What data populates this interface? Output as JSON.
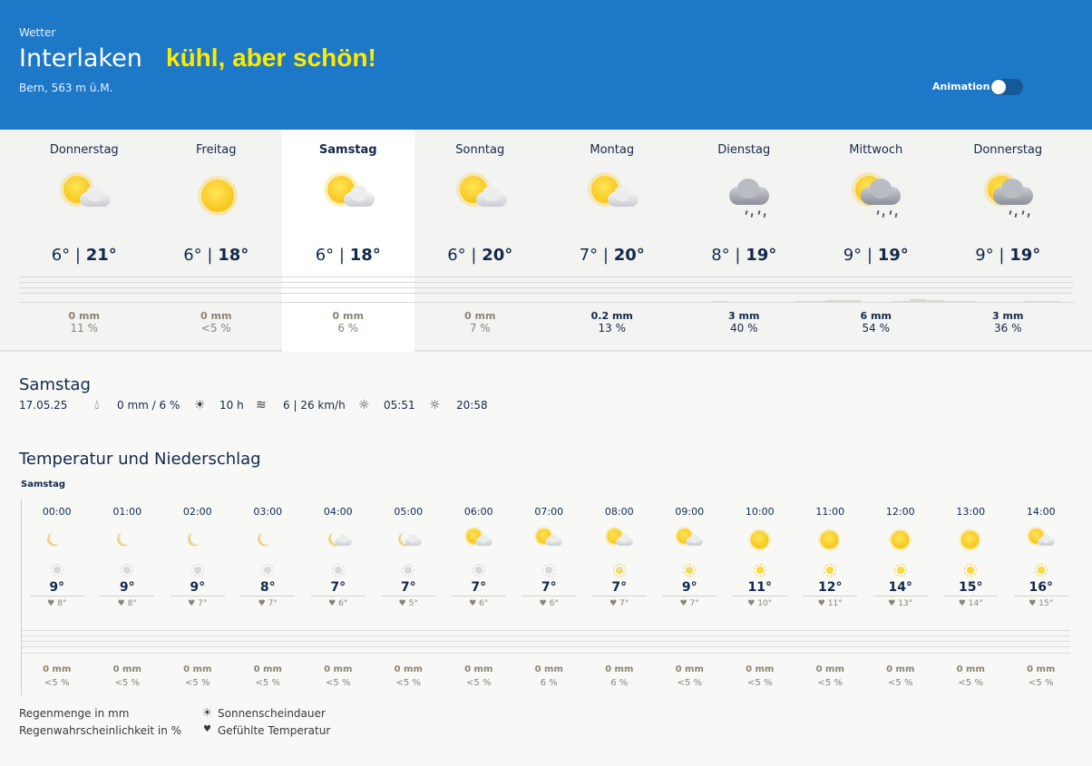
{
  "header": {
    "section": "Wetter",
    "city": "Interlaken",
    "slogan": "kühl, aber schön!",
    "subtitle": "Bern, 563 m ü.M.",
    "animation_label": "Animation",
    "animation_on": false,
    "brand_color": "#1e78c8",
    "slogan_color": "#ffea00"
  },
  "days": [
    {
      "name": "Donnerstag",
      "icon": "sun-cloud",
      "min": "6°",
      "max": "21°",
      "rain": "0 mm",
      "prob": "11 %"
    },
    {
      "name": "Freitag",
      "icon": "sun",
      "min": "6°",
      "max": "18°",
      "rain": "0 mm",
      "prob": "<5 %"
    },
    {
      "name": "Samstag",
      "icon": "sun-cloud",
      "min": "6°",
      "max": "18°",
      "rain": "0 mm",
      "prob": "6 %",
      "selected": true
    },
    {
      "name": "Sonntag",
      "icon": "sun-cloud",
      "min": "6°",
      "max": "20°",
      "rain": "0 mm",
      "prob": "7 %"
    },
    {
      "name": "Montag",
      "icon": "sun-cloud",
      "min": "7°",
      "max": "20°",
      "rain": "0.2 mm",
      "prob": "13 %"
    },
    {
      "name": "Dienstag",
      "icon": "rain-cloud",
      "min": "8°",
      "max": "19°",
      "rain": "3 mm",
      "prob": "40 %"
    },
    {
      "name": "Mittwoch",
      "icon": "sun-rain-cloud",
      "min": "9°",
      "max": "19°",
      "rain": "6 mm",
      "prob": "54 %"
    },
    {
      "name": "Donnerstag",
      "icon": "sun-rain-cloud",
      "min": "9°",
      "max": "19°",
      "rain": "3 mm",
      "prob": "36 %"
    }
  ],
  "detail": {
    "title": "Samstag",
    "date": "17.05.25",
    "rain": "0 mm / 6 %",
    "sunshine": "10 h",
    "wind": "6 | 26 km/h",
    "sunrise": "05:51",
    "sunset": "20:58"
  },
  "hourly": {
    "title": "Temperatur und Niederschlag",
    "day_label": "Samstag",
    "hours": [
      {
        "time": "00:00",
        "icon": "moon",
        "sun": 0,
        "temp": "9°",
        "felt": "8°",
        "rain": "0 mm",
        "prob": "<5 %"
      },
      {
        "time": "01:00",
        "icon": "moon",
        "sun": 0,
        "temp": "9°",
        "felt": "8°",
        "rain": "0 mm",
        "prob": "<5 %"
      },
      {
        "time": "02:00",
        "icon": "moon",
        "sun": 0,
        "temp": "9°",
        "felt": "7°",
        "rain": "0 mm",
        "prob": "<5 %"
      },
      {
        "time": "03:00",
        "icon": "moon",
        "sun": 0,
        "temp": "8°",
        "felt": "7°",
        "rain": "0 mm",
        "prob": "<5 %"
      },
      {
        "time": "04:00",
        "icon": "moon-cloud",
        "sun": 0,
        "temp": "7°",
        "felt": "6°",
        "rain": "0 mm",
        "prob": "<5 %"
      },
      {
        "time": "05:00",
        "icon": "moon-cloud",
        "sun": 0,
        "temp": "7°",
        "felt": "5°",
        "rain": "0 mm",
        "prob": "<5 %"
      },
      {
        "time": "06:00",
        "icon": "sun-cloud",
        "sun": 0,
        "temp": "7°",
        "felt": "6°",
        "rain": "0 mm",
        "prob": "<5 %"
      },
      {
        "time": "07:00",
        "icon": "sun-cloud",
        "sun": 0,
        "temp": "7°",
        "felt": "6°",
        "rain": "0 mm",
        "prob": "6 %"
      },
      {
        "time": "08:00",
        "icon": "sun-cloud",
        "sun": 0.5,
        "temp": "7°",
        "felt": "7°",
        "rain": "0 mm",
        "prob": "6 %"
      },
      {
        "time": "09:00",
        "icon": "sun-cloud",
        "sun": 0.8,
        "temp": "9°",
        "felt": "7°",
        "rain": "0 mm",
        "prob": "<5 %"
      },
      {
        "time": "10:00",
        "icon": "sun",
        "sun": 1,
        "temp": "11°",
        "felt": "10°",
        "rain": "0 mm",
        "prob": "<5 %"
      },
      {
        "time": "11:00",
        "icon": "sun",
        "sun": 1,
        "temp": "12°",
        "felt": "11°",
        "rain": "0 mm",
        "prob": "<5 %"
      },
      {
        "time": "12:00",
        "icon": "sun",
        "sun": 1,
        "temp": "14°",
        "felt": "13°",
        "rain": "0 mm",
        "prob": "<5 %"
      },
      {
        "time": "13:00",
        "icon": "sun",
        "sun": 1,
        "temp": "15°",
        "felt": "14°",
        "rain": "0 mm",
        "prob": "<5 %"
      },
      {
        "time": "14:00",
        "icon": "sun-cloud",
        "sun": 1,
        "temp": "16°",
        "felt": "15°",
        "rain": "0 mm",
        "prob": "<5 %"
      }
    ]
  },
  "legend": {
    "rain_amount": "Regenmenge in mm",
    "rain_prob": "Regenwahrscheinlichkeit in %",
    "sunshine": "Sonnenscheindauer",
    "felt": "Gefühlte Temperatur",
    "heart": "♥"
  }
}
